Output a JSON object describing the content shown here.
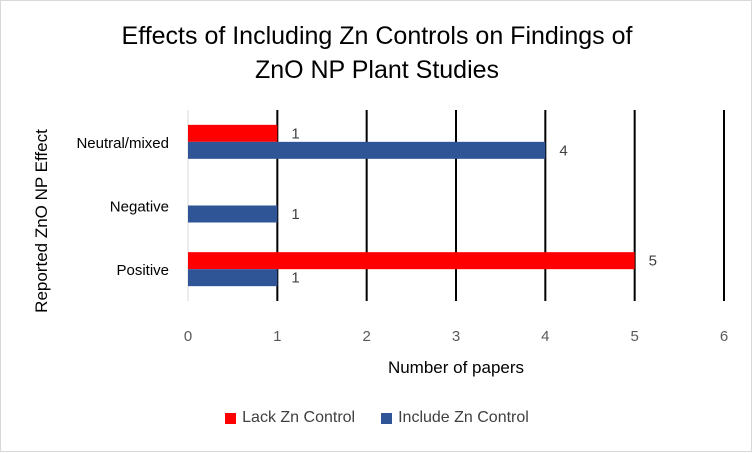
{
  "chart_data": {
    "type": "bar",
    "orientation": "horizontal",
    "title_line1": "Effects of Including Zn Controls on Findings of",
    "title_line2": "ZnO NP Plant Studies",
    "xlabel": "Number of papers",
    "ylabel": "Reported ZnO NP Effect",
    "categories": [
      "Positive",
      "Negative",
      "Neutral/mixed"
    ],
    "xlim": [
      0,
      6
    ],
    "xticks": [
      "0",
      "1",
      "2",
      "3",
      "4",
      "5",
      "6"
    ],
    "grid": true,
    "legend_position": "bottom",
    "series": [
      {
        "name": "Lack Zn Control",
        "color": "#ff0000",
        "values": [
          5,
          null,
          1
        ],
        "labels": [
          "5",
          "",
          "1"
        ]
      },
      {
        "name": "Include Zn Control",
        "color": "#2f5597",
        "values": [
          1,
          1,
          4
        ],
        "labels": [
          "1",
          "1",
          "4"
        ]
      }
    ]
  }
}
